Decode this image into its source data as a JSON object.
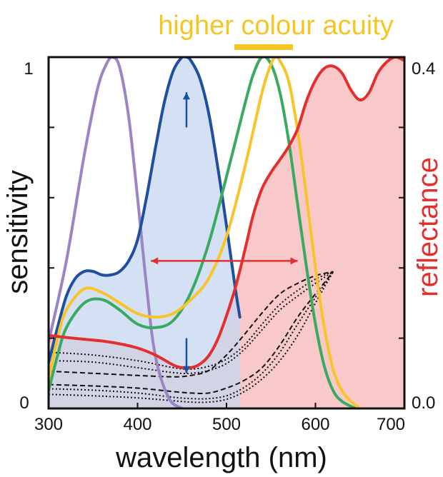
{
  "chart_data": {
    "type": "line",
    "annotation": "higher colour acuity",
    "xlabel": "wavelength (nm)",
    "ylabel_left": "sensitivity",
    "ylabel_right": "reflectance",
    "xlim": [
      300,
      700
    ],
    "ylim_left": [
      0,
      1
    ],
    "ylim_right": [
      0.0,
      0.4
    ],
    "x_ticks": [
      "300",
      "400",
      "500",
      "600",
      "700"
    ],
    "y_ticks_left": [
      "0",
      "1"
    ],
    "y_ticks_right": [
      "0.0",
      "0.4"
    ],
    "colors": {
      "annotation": "#f5c623",
      "uv": "#9b85c4",
      "blue": "#1f4fa0",
      "blue_fill": "#c5d6ef",
      "green": "#3aaa63",
      "yellow": "#f7c52b",
      "red": "#e3302f",
      "red_fill": "#f9c9c9",
      "dotted": "#111111"
    },
    "series": [
      {
        "key": "uv",
        "axis": "left",
        "x": [
          300,
          320,
          340,
          355,
          365,
          372,
          380,
          390,
          400,
          410,
          420,
          435,
          450
        ],
        "y": [
          0.19,
          0.42,
          0.72,
          0.91,
          0.98,
          1.0,
          0.97,
          0.83,
          0.6,
          0.35,
          0.15,
          0.03,
          0.0
        ]
      },
      {
        "key": "blue",
        "axis": "left",
        "x": [
          300,
          310,
          320,
          330,
          340,
          350,
          360,
          370,
          380,
          390,
          400,
          410,
          420,
          430,
          440,
          450,
          455,
          460,
          470,
          480,
          490,
          500,
          510,
          515
        ],
        "y": [
          0.13,
          0.23,
          0.32,
          0.37,
          0.39,
          0.39,
          0.38,
          0.38,
          0.39,
          0.42,
          0.48,
          0.6,
          0.74,
          0.87,
          0.96,
          1.0,
          1.0,
          0.99,
          0.94,
          0.84,
          0.69,
          0.52,
          0.34,
          0.26
        ]
      },
      {
        "key": "green",
        "axis": "left",
        "x": [
          300,
          310,
          320,
          340,
          360,
          380,
          400,
          420,
          440,
          460,
          480,
          500,
          520,
          530,
          540,
          550,
          560,
          570,
          580,
          590,
          600,
          610,
          620,
          630,
          645
        ],
        "y": [
          0.05,
          0.15,
          0.23,
          0.3,
          0.31,
          0.28,
          0.24,
          0.23,
          0.25,
          0.33,
          0.47,
          0.66,
          0.86,
          0.95,
          1.0,
          0.98,
          0.9,
          0.76,
          0.58,
          0.4,
          0.24,
          0.12,
          0.05,
          0.02,
          0.0
        ]
      },
      {
        "key": "yellow",
        "axis": "left",
        "x": [
          300,
          310,
          320,
          340,
          360,
          380,
          400,
          420,
          440,
          460,
          480,
          500,
          520,
          540,
          550,
          555,
          560,
          570,
          580,
          590,
          600,
          610,
          620,
          630,
          640,
          650
        ],
        "y": [
          0.08,
          0.2,
          0.28,
          0.34,
          0.33,
          0.3,
          0.27,
          0.26,
          0.27,
          0.31,
          0.37,
          0.49,
          0.68,
          0.9,
          0.98,
          1.0,
          0.99,
          0.93,
          0.79,
          0.6,
          0.4,
          0.23,
          0.11,
          0.05,
          0.02,
          0.0
        ]
      },
      {
        "key": "red",
        "axis": "right",
        "x": [
          300,
          320,
          340,
          360,
          380,
          400,
          420,
          440,
          450,
          460,
          470,
          480,
          490,
          500,
          510,
          520,
          530,
          540,
          550,
          560,
          570,
          580,
          590,
          600,
          610,
          620,
          630,
          640,
          650,
          660,
          670,
          680,
          690,
          700
        ],
        "y": [
          0.0832,
          0.0808,
          0.0788,
          0.0768,
          0.0736,
          0.0688,
          0.0608,
          0.0496,
          0.0464,
          0.0464,
          0.0504,
          0.06,
          0.0784,
          0.1056,
          0.1376,
          0.1776,
          0.22,
          0.2504,
          0.2688,
          0.2832,
          0.2984,
          0.3184,
          0.3504,
          0.3736,
          0.3872,
          0.3896,
          0.3816,
          0.3624,
          0.3512,
          0.3592,
          0.3816,
          0.3944,
          0.4,
          0.396
        ]
      }
    ],
    "dotted_series": [
      {
        "x": [
          300,
          350,
          400,
          440,
          460,
          480,
          500,
          520,
          540,
          560,
          580,
          600,
          620
        ],
        "y": [
          0.16,
          0.152,
          0.136,
          0.116,
          0.112,
          0.12,
          0.14,
          0.18,
          0.24,
          0.296,
          0.336,
          0.368,
          0.3896
        ]
      },
      {
        "x": [
          300,
          350,
          400,
          440,
          460,
          480,
          500,
          520,
          540,
          560,
          580,
          600,
          620
        ],
        "y": [
          0.136,
          0.132,
          0.116,
          0.102,
          0.1,
          0.108,
          0.128,
          0.168,
          0.224,
          0.28,
          0.32,
          0.356,
          0.3896
        ]
      },
      {
        "x": [
          300,
          350,
          400,
          440,
          460,
          480,
          500,
          520,
          540,
          560,
          580,
          600,
          620
        ],
        "y": [
          0.106,
          0.1,
          0.094,
          0.09,
          0.094,
          0.108,
          0.152,
          0.21,
          0.272,
          0.326,
          0.356,
          0.378,
          0.3896
        ]
      },
      {
        "x": [
          300,
          350,
          400,
          440,
          460,
          480,
          500,
          520,
          540,
          560,
          580,
          600,
          620
        ],
        "y": [
          0.068,
          0.064,
          0.058,
          0.048,
          0.044,
          0.044,
          0.058,
          0.08,
          0.116,
          0.18,
          0.26,
          0.326,
          0.3896
        ]
      },
      {
        "x": [
          300,
          350,
          400,
          440,
          460,
          480,
          500,
          520,
          540,
          560,
          580,
          600,
          620
        ],
        "y": [
          0.056,
          0.052,
          0.044,
          0.032,
          0.028,
          0.028,
          0.036,
          0.06,
          0.1,
          0.16,
          0.24,
          0.316,
          0.3896
        ]
      },
      {
        "x": [
          300,
          350,
          400,
          440,
          460,
          480,
          500,
          520,
          540,
          560,
          580,
          600,
          620
        ],
        "y": [
          0.04,
          0.036,
          0.03,
          0.022,
          0.018,
          0.018,
          0.026,
          0.048,
          0.084,
          0.136,
          0.208,
          0.3,
          0.3896
        ]
      }
    ]
  }
}
